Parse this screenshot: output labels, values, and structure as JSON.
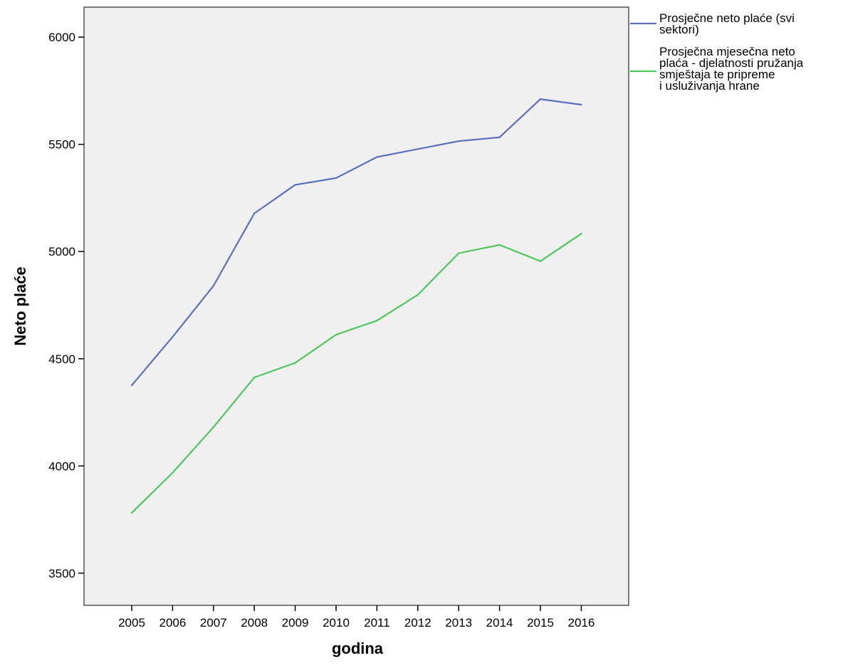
{
  "chart_data": {
    "type": "line",
    "xlabel": "godina",
    "ylabel": "Neto plaće",
    "x": [
      "2005",
      "2006",
      "2007",
      "2008",
      "2009",
      "2010",
      "2011",
      "2012",
      "2013",
      "2014",
      "2015",
      "2016"
    ],
    "yticks": [
      "3500",
      "4000",
      "4500",
      "5000",
      "5500",
      "6000"
    ],
    "ylim": [
      3350,
      6140
    ],
    "grid": false,
    "legend_position": "right",
    "series": [
      {
        "name": "Prosječne neto plaće (svi sektori)",
        "legend_lines": [
          "Prosječne neto plaće (svi",
          "sektori)"
        ],
        "color": "#5b6fbf",
        "values": [
          4376,
          4602,
          4840,
          5178,
          5311,
          5343,
          5441,
          5478,
          5515,
          5533,
          5711,
          5685
        ]
      },
      {
        "name": "Prosječna mjesečna neto plaća - djelatnosti pružanja smještaja te pripreme i usluživanja hrane",
        "legend_lines": [
          "Prosječna mjesečna neto",
          "plaća - djelatnosti pružanja",
          "smještaja te pripreme",
          "i usluživanja hrane"
        ],
        "color": "#4cc85a",
        "values": [
          3781,
          3968,
          4181,
          4413,
          4481,
          4612,
          4678,
          4798,
          4992,
          5031,
          4955,
          5083
        ]
      }
    ]
  }
}
